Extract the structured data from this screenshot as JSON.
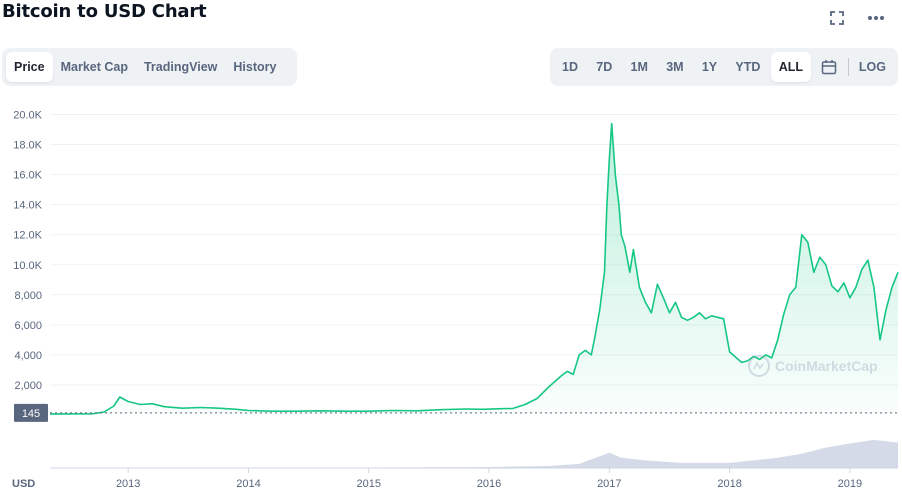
{
  "title": "Bitcoin to USD Chart",
  "icons": {
    "fullscreen": "fullscreen-icon",
    "more": "more-dots-icon",
    "calendar": "calendar-icon"
  },
  "tabs": [
    "Price",
    "Market Cap",
    "TradingView",
    "History"
  ],
  "active_tab": "Price",
  "ranges": [
    "1D",
    "7D",
    "1M",
    "3M",
    "1Y",
    "YTD",
    "ALL"
  ],
  "active_range": "ALL",
  "log_label": "LOG",
  "watermark": "CoinMarketCap",
  "colors": {
    "line": "#16c784",
    "fill_top": "#16c784",
    "grid": "#eff2f5",
    "volume": "#cfd6e4",
    "current_tag": "#58667e"
  },
  "chart_data": {
    "type": "area",
    "title": "",
    "xlabel": "",
    "ylabel": "",
    "currency_label": "USD",
    "current_price_label": "145",
    "y_ticks": [
      "2,000",
      "4,000",
      "6,000",
      "8,000",
      "10.0K",
      "12.0K",
      "14.0K",
      "16.0K",
      "18.0K",
      "20.0K"
    ],
    "y_tick_values": [
      2000,
      4000,
      6000,
      8000,
      10000,
      12000,
      14000,
      16000,
      18000,
      20000
    ],
    "ylim": [
      0,
      20500
    ],
    "x_ticks": [
      "2013",
      "2014",
      "2015",
      "2016",
      "2017",
      "2018",
      "2019"
    ],
    "x_tick_values": [
      2013.0,
      2014.0,
      2015.0,
      2016.0,
      2017.0,
      2018.0,
      2019.0
    ],
    "xlim": [
      2012.35,
      2019.4
    ],
    "grid": true,
    "series": [
      {
        "x": [
          2012.35,
          2012.5,
          2012.7,
          2012.8,
          2012.88,
          2012.93,
          2013.0,
          2013.1,
          2013.2,
          2013.3,
          2013.45,
          2013.6,
          2013.75,
          2013.9,
          2014.0,
          2014.2,
          2014.4,
          2014.6,
          2014.8,
          2015.0,
          2015.2,
          2015.4,
          2015.6,
          2015.8,
          2015.95,
          2016.1,
          2016.2,
          2016.3,
          2016.4,
          2016.5,
          2016.6,
          2016.65,
          2016.7,
          2016.75,
          2016.8,
          2016.85,
          2016.88,
          2016.92,
          2016.96,
          2016.98,
          2017.0,
          2017.02,
          2017.05,
          2017.08,
          2017.1,
          2017.13,
          2017.17,
          2017.2,
          2017.25,
          2017.3,
          2017.35,
          2017.4,
          2017.45,
          2017.5,
          2017.55,
          2017.6,
          2017.65,
          2017.7,
          2017.75,
          2017.8,
          2017.85,
          2017.9,
          2017.95,
          2018.0,
          2018.1,
          2018.15,
          2018.2,
          2018.25,
          2018.3,
          2018.35,
          2018.4,
          2018.45,
          2018.5,
          2018.55,
          2018.6,
          2018.65,
          2018.7,
          2018.75,
          2018.8,
          2018.85,
          2018.9,
          2018.95,
          2019.0,
          2019.05,
          2019.1,
          2019.15,
          2019.2,
          2019.25,
          2019.3,
          2019.35,
          2019.4
        ],
        "y": [
          60,
          70,
          80,
          200,
          600,
          1200,
          900,
          700,
          750,
          550,
          450,
          500,
          450,
          380,
          300,
          250,
          250,
          280,
          250,
          250,
          300,
          280,
          350,
          400,
          380,
          420,
          440,
          700,
          1100,
          1900,
          2600,
          2900,
          2700,
          4000,
          4300,
          4000,
          5200,
          7000,
          9500,
          14000,
          17000,
          19400,
          16000,
          14000,
          12000,
          11200,
          9500,
          11000,
          8500,
          7500,
          6800,
          8700,
          7800,
          6800,
          7500,
          6500,
          6300,
          6500,
          6800,
          6400,
          6600,
          6500,
          6400,
          4200,
          3500,
          3600,
          3900,
          3700,
          4000,
          3800,
          5000,
          6700,
          8000,
          8500,
          12000,
          11500,
          9500,
          10500,
          10000,
          8600,
          8200,
          8800,
          7800,
          8500,
          9700,
          10300,
          8500,
          5000,
          7000,
          8500,
          9500
        ]
      }
    ],
    "volume": {
      "x": [
        2012.35,
        2013.0,
        2014.0,
        2015.0,
        2016.0,
        2016.5,
        2016.75,
        2017.0,
        2017.1,
        2017.3,
        2017.6,
        2017.9,
        2018.0,
        2018.2,
        2018.4,
        2018.6,
        2018.8,
        2019.0,
        2019.2,
        2019.4
      ],
      "y": [
        0.0,
        0.01,
        0.01,
        0.01,
        0.02,
        0.04,
        0.08,
        0.3,
        0.2,
        0.15,
        0.1,
        0.1,
        0.1,
        0.15,
        0.2,
        0.28,
        0.4,
        0.48,
        0.55,
        0.5
      ]
    }
  }
}
